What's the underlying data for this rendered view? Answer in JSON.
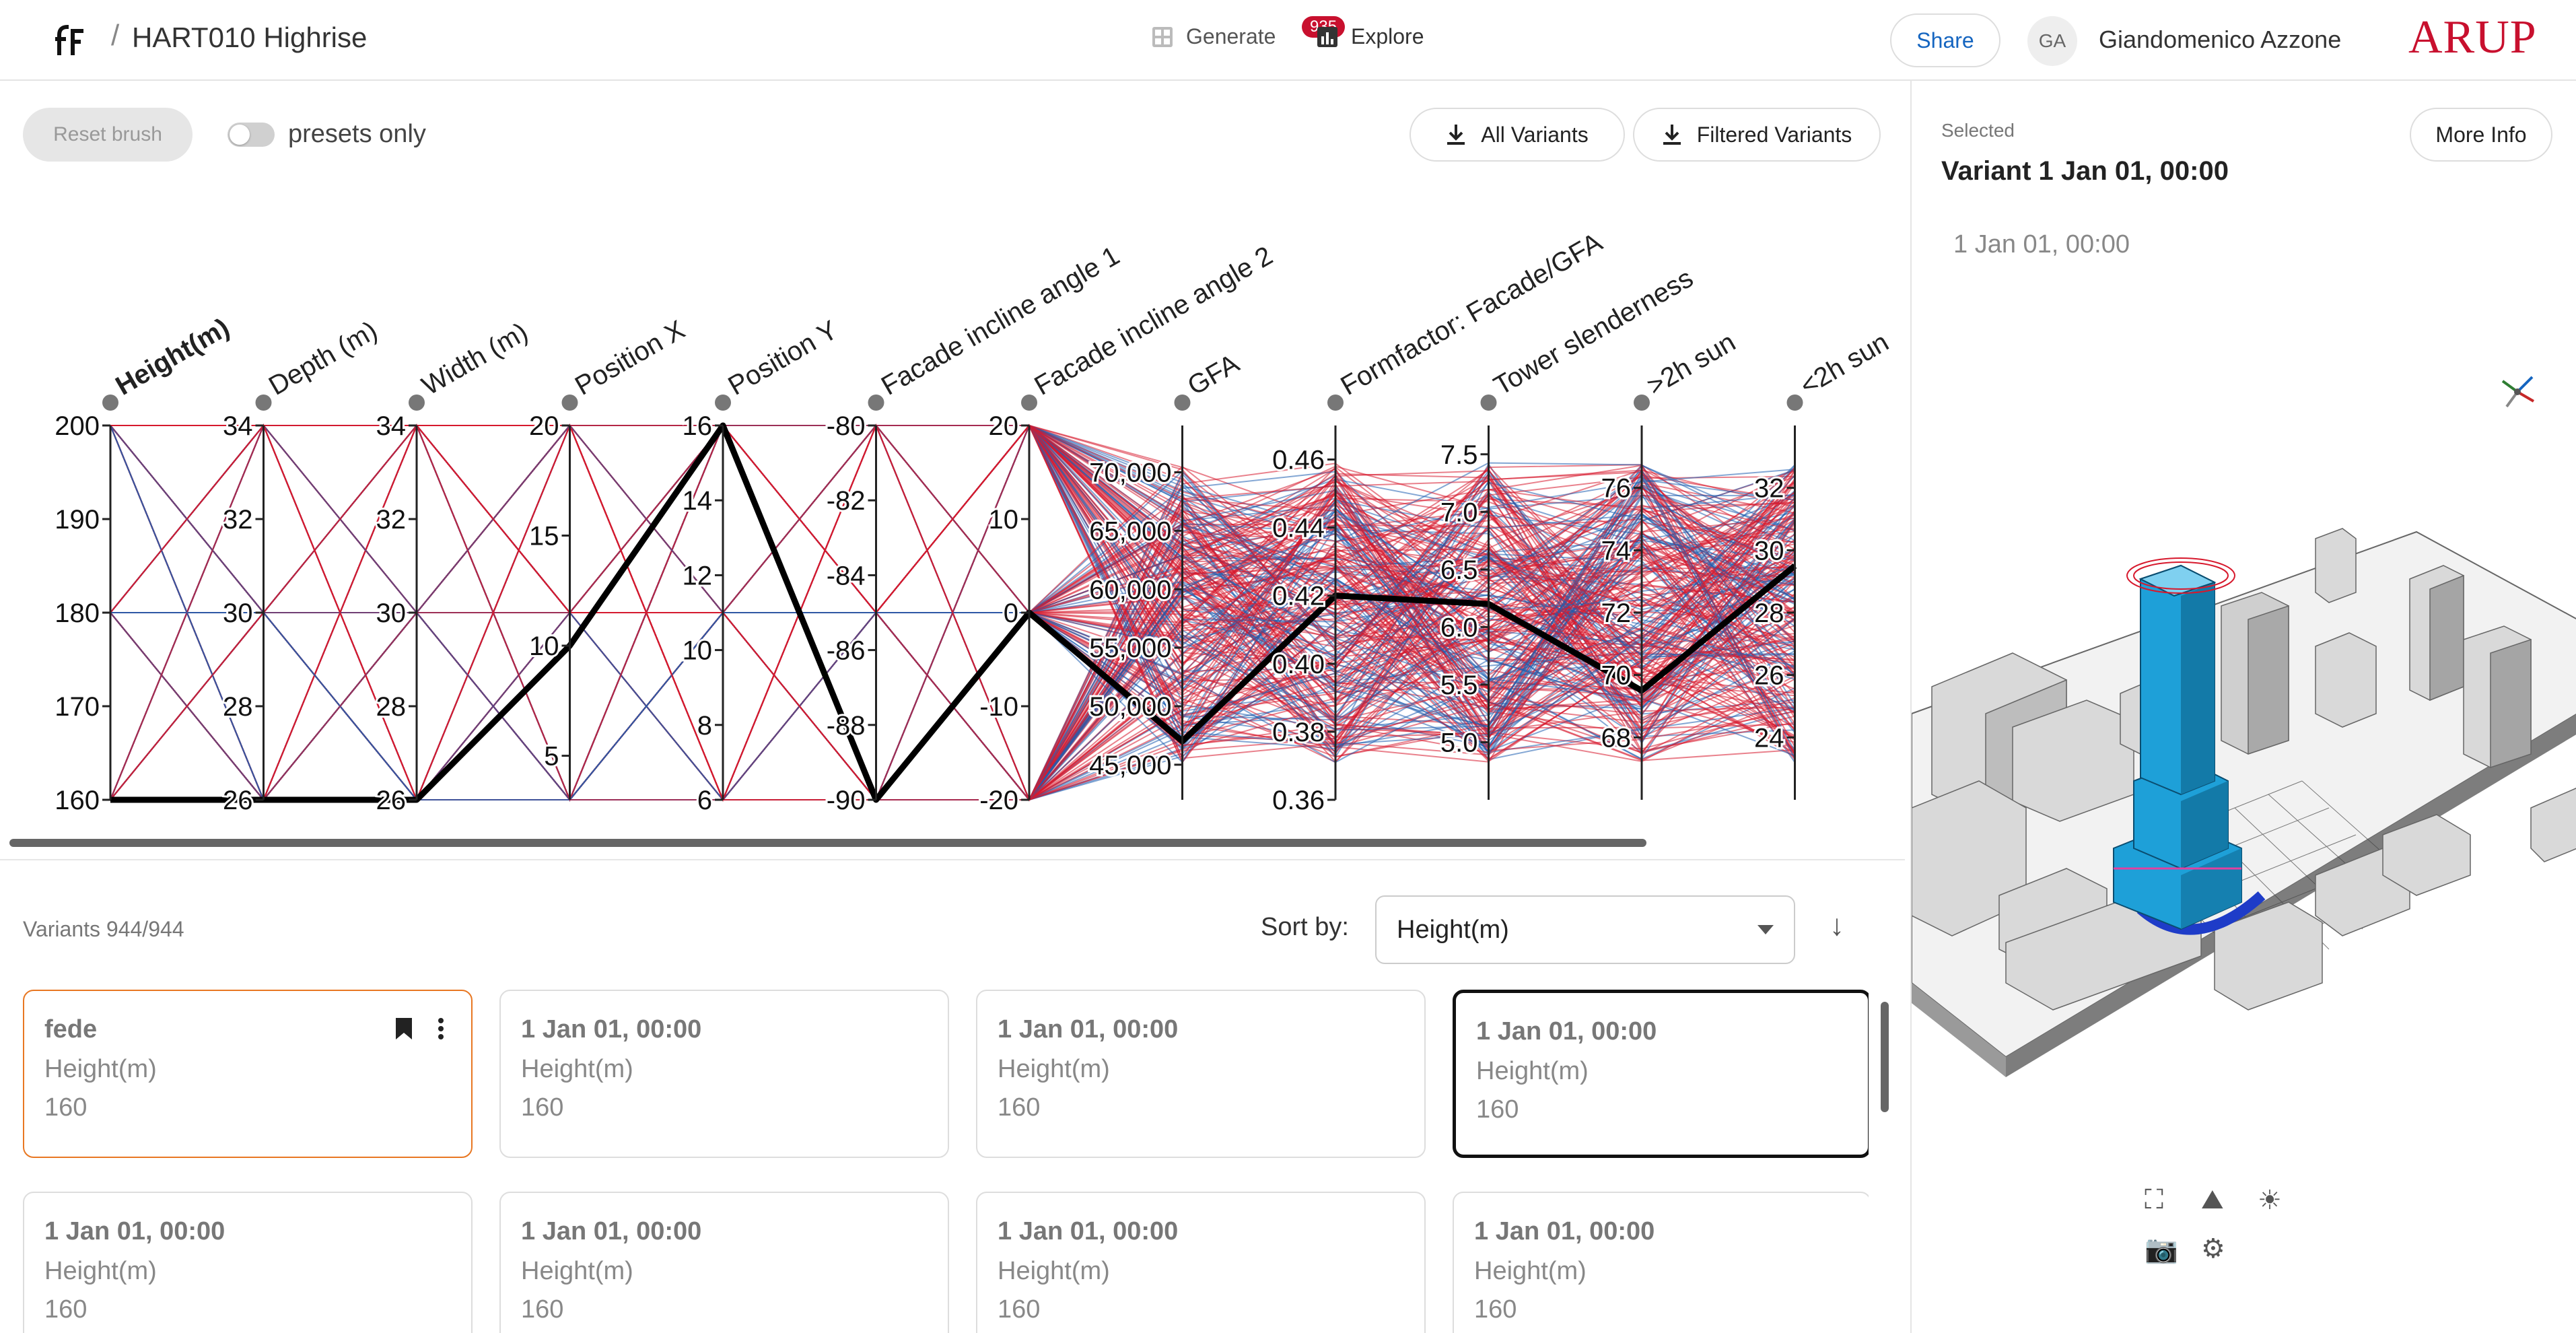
{
  "header": {
    "separator": "/",
    "project_title": "HART010 Highrise",
    "nav": {
      "generate_label": "Generate",
      "explore_label": "Explore",
      "explore_badge": "935"
    },
    "share_label": "Share",
    "user": {
      "initials": "GA",
      "name": "Giandomenico Azzone"
    },
    "brand": "ARUP"
  },
  "toolbar": {
    "reset_label": "Reset brush",
    "toggle_label": "presets only",
    "download_all_label": "All Variants",
    "download_filtered_label": "Filtered Variants"
  },
  "chart_data": {
    "type": "parallel_coordinates",
    "axes": [
      {
        "name": "Height(m)",
        "bold": true,
        "range": [
          160,
          200
        ],
        "ticks": [
          "200",
          "190",
          "180",
          "170",
          "160"
        ]
      },
      {
        "name": "Depth (m)",
        "range": [
          26,
          34
        ],
        "ticks": [
          "34",
          "32",
          "30",
          "28",
          "26"
        ]
      },
      {
        "name": "Width (m)",
        "range": [
          26,
          34
        ],
        "ticks": [
          "34",
          "32",
          "30",
          "28",
          "26"
        ]
      },
      {
        "name": "Position X",
        "range": [
          3,
          20
        ],
        "ticks": [
          "20",
          "15",
          "10",
          "5"
        ]
      },
      {
        "name": "Position Y",
        "range": [
          6,
          16
        ],
        "ticks": [
          "16",
          "14",
          "12",
          "10",
          "8",
          "6"
        ]
      },
      {
        "name": "Facade incline angle 1",
        "range": [
          -90,
          -80
        ],
        "ticks": [
          "-80",
          "-82",
          "-84",
          "-86",
          "-88",
          "-90"
        ]
      },
      {
        "name": "Facade incline angle 2",
        "range": [
          -20,
          20
        ],
        "ticks": [
          "20",
          "10",
          "0",
          "-10",
          "-20"
        ]
      },
      {
        "name": "GFA",
        "range": [
          42000,
          74000
        ],
        "ticks": [
          "70,000",
          "65,000",
          "60,000",
          "55,000",
          "50,000",
          "45,000"
        ]
      },
      {
        "name": "Formfactor: Facade/GFA",
        "range": [
          0.36,
          0.47
        ],
        "ticks": [
          "0.46",
          "0.44",
          "0.42",
          "0.40",
          "0.38",
          "0.36"
        ]
      },
      {
        "name": "Tower slenderness",
        "range": [
          4.5,
          7.75
        ],
        "ticks": [
          "7.5",
          "7.0",
          "6.5",
          "6.0",
          "5.5",
          "5.0"
        ]
      },
      {
        "name": ">2h sun",
        "range": [
          66,
          78
        ],
        "ticks": [
          "76",
          "74",
          "72",
          "70",
          "68"
        ]
      },
      {
        "name": "<2h sun",
        "range": [
          22,
          34
        ],
        "ticks": [
          "32",
          "30",
          "28",
          "26",
          "24"
        ]
      }
    ],
    "selected_line": [
      160,
      26,
      26,
      10,
      16,
      -90,
      0,
      47000,
      0.42,
      6.2,
      69.5,
      29.5
    ],
    "line_colors": {
      "selected": "#000000",
      "high": "#d7192d",
      "low": "#1f5fb0"
    }
  },
  "variants": {
    "count_label": "Variants 944/944",
    "sort_label": "Sort by:",
    "sort_value": "Height(m)",
    "cards": [
      {
        "title": "fede",
        "metric": "Height(m)",
        "value": "160"
      },
      {
        "title": "1 Jan 01, 00:00",
        "metric": "Height(m)",
        "value": "160"
      },
      {
        "title": "1 Jan 01, 00:00",
        "metric": "Height(m)",
        "value": "160"
      },
      {
        "title": "1 Jan 01, 00:00",
        "metric": "Height(m)",
        "value": "160"
      },
      {
        "title": "1 Jan 01, 00:00",
        "metric": "Height(m)",
        "value": "160"
      },
      {
        "title": "1 Jan 01, 00:00",
        "metric": "Height(m)",
        "value": "160"
      },
      {
        "title": "1 Jan 01, 00:00",
        "metric": "Height(m)",
        "value": "160"
      },
      {
        "title": "1 Jan 01, 00:00",
        "metric": "Height(m)",
        "value": "160"
      }
    ]
  },
  "selected_panel": {
    "label": "Selected",
    "title": "Variant 1 Jan 01, 00:00",
    "subtitle": "1 Jan 01, 00:00",
    "more_info_label": "More Info"
  },
  "colors": {
    "accent": "#1565c0",
    "brand": "#c8102e",
    "highlight": "#e87722",
    "tower": "#1ea0d8"
  }
}
